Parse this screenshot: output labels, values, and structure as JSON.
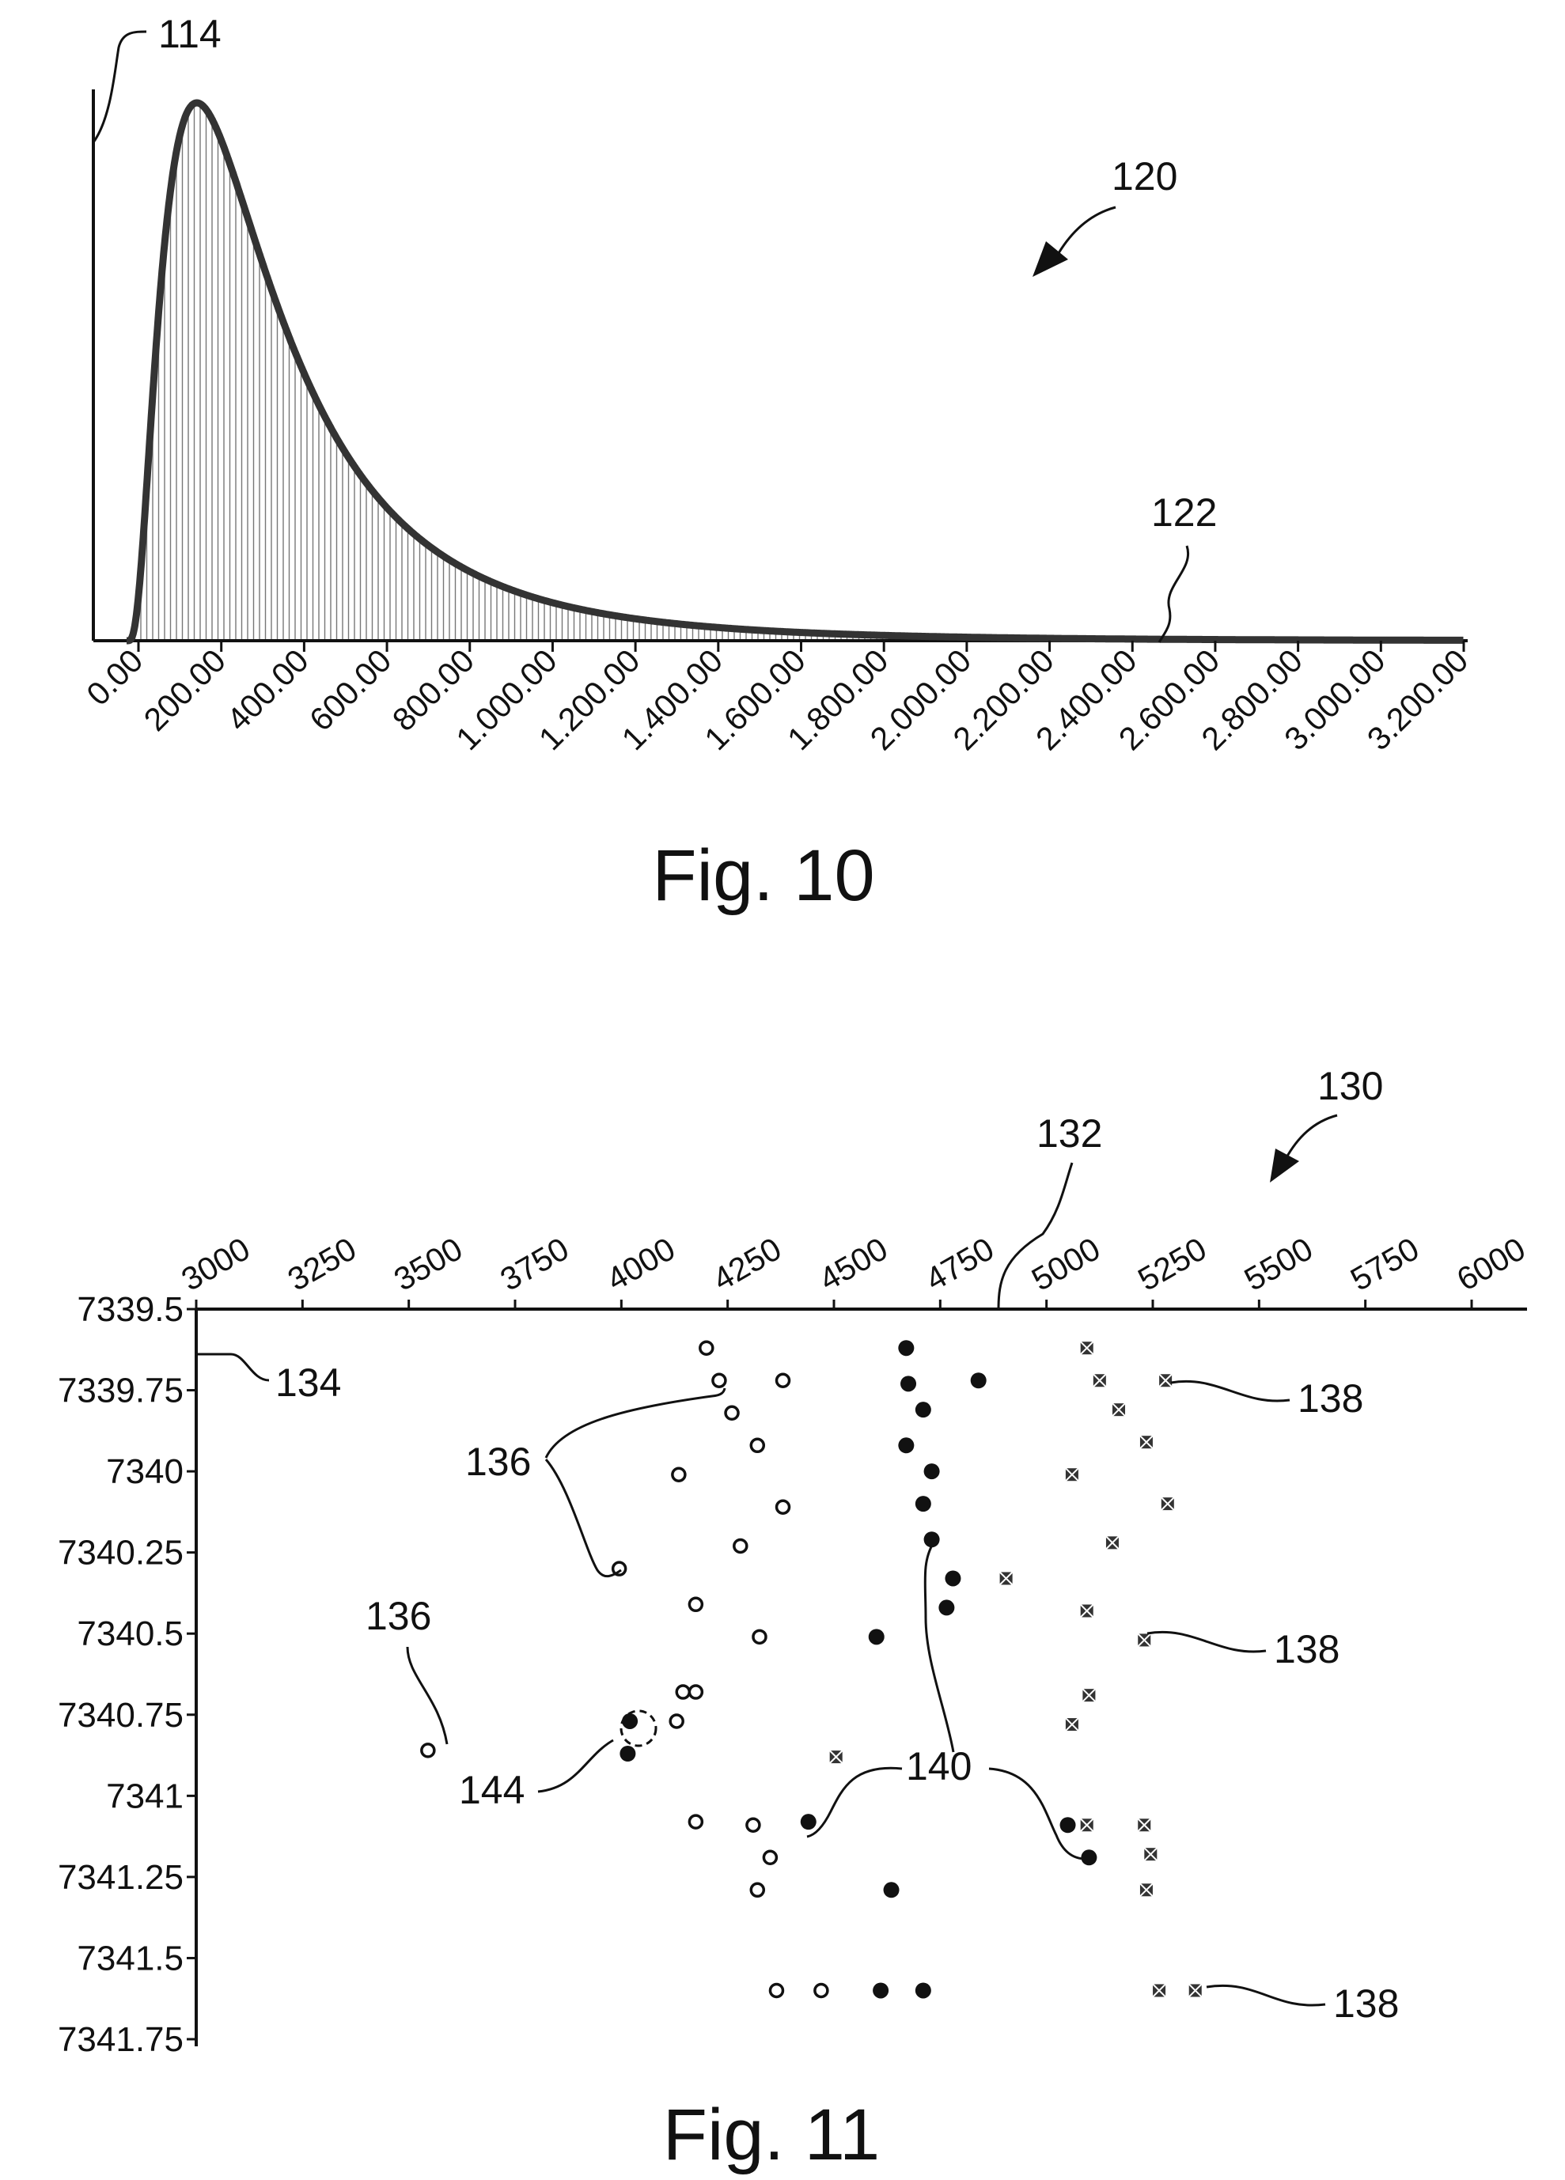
{
  "chart_data": [
    {
      "type": "area",
      "figure_label": "Fig. 10",
      "title": "",
      "xlabel": "",
      "ylabel": "",
      "x_tick_labels": [
        "0.00",
        "200.00",
        "400.00",
        "600.00",
        "800.00",
        "1.000.00",
        "1.200.00",
        "1.400.00",
        "1.600.00",
        "1.800.00",
        "2.000.00",
        "2.200.00",
        "2.400.00",
        "2.600.00",
        "2.800.00",
        "3.000.00",
        "3.200.00"
      ],
      "xlim": [
        0,
        3200
      ],
      "curve_params": {
        "shape": "lognormal",
        "mu": 5.75,
        "sigma": 0.78,
        "start": -30
      },
      "grid": false,
      "reference_numerals": {
        "axis_line": "114",
        "figure": "120",
        "curve": "122"
      }
    },
    {
      "type": "scatter",
      "figure_label": "Fig. 11",
      "title": "",
      "xlabel": "",
      "ylabel": "",
      "x_tick_labels": [
        "3000",
        "3250",
        "3500",
        "3750",
        "4000",
        "4250",
        "4500",
        "4750",
        "5000",
        "5250",
        "5500",
        "5750",
        "6000"
      ],
      "xlim": [
        3000,
        6000
      ],
      "y_tick_labels": [
        "7339.5",
        "7339.75",
        "7340",
        "7340.25",
        "7340.5",
        "7340.75",
        "7341",
        "7341.25",
        "7341.5",
        "7341.75"
      ],
      "ylim": [
        7339.5,
        7341.75
      ],
      "y_inverted": true,
      "series": [
        {
          "marker": "open-circle",
          "points": [
            [
              4200,
              7339.62
            ],
            [
              4230,
              7339.72
            ],
            [
              4380,
              7339.72
            ],
            [
              4260,
              7339.82
            ],
            [
              4320,
              7339.92
            ],
            [
              4135,
              7340.01
            ],
            [
              4380,
              7340.11
            ],
            [
              4280,
              7340.23
            ],
            [
              3995,
              7340.3
            ],
            [
              4175,
              7340.41
            ],
            [
              4325,
              7340.51
            ],
            [
              4145,
              7340.68
            ],
            [
              4175,
              7340.68
            ],
            [
              4130,
              7340.77
            ],
            [
              3545,
              7340.86
            ],
            [
              4175,
              7341.08
            ],
            [
              4310,
              7341.09
            ],
            [
              4350,
              7341.19
            ],
            [
              4320,
              7341.29
            ],
            [
              4365,
              7341.6
            ],
            [
              4470,
              7341.6
            ]
          ]
        },
        {
          "marker": "filled-circle",
          "points": [
            [
              4670,
              7339.62
            ],
            [
              4675,
              7339.73
            ],
            [
              4840,
              7339.72
            ],
            [
              4710,
              7339.81
            ],
            [
              4670,
              7339.92
            ],
            [
              4730,
              7340.0
            ],
            [
              4710,
              7340.1
            ],
            [
              4730,
              7340.21
            ],
            [
              4780,
              7340.33
            ],
            [
              4765,
              7340.42
            ],
            [
              4600,
              7340.51
            ],
            [
              4020,
              7340.77
            ],
            [
              4015,
              7340.87
            ],
            [
              4440,
              7341.08
            ],
            [
              5050,
              7341.09
            ],
            [
              5100,
              7341.19
            ],
            [
              4635,
              7341.29
            ],
            [
              4610,
              7341.6
            ],
            [
              4710,
              7341.6
            ]
          ]
        },
        {
          "marker": "x-mark",
          "points": [
            [
              5095,
              7339.62
            ],
            [
              5125,
              7339.72
            ],
            [
              5280,
              7339.72
            ],
            [
              5170,
              7339.81
            ],
            [
              5235,
              7339.91
            ],
            [
              5060,
              7340.01
            ],
            [
              5285,
              7340.1
            ],
            [
              5155,
              7340.22
            ],
            [
              4905,
              7340.33
            ],
            [
              5095,
              7340.43
            ],
            [
              5230,
              7340.52
            ],
            [
              5100,
              7340.69
            ],
            [
              5060,
              7340.78
            ],
            [
              4505,
              7340.88
            ],
            [
              5095,
              7341.09
            ],
            [
              5230,
              7341.09
            ],
            [
              5245,
              7341.18
            ],
            [
              5235,
              7341.29
            ],
            [
              5265,
              7341.6
            ],
            [
              5350,
              7341.6
            ]
          ]
        }
      ],
      "grid": false,
      "reference_numerals": {
        "figure": "130",
        "x_axis": "132",
        "y_axis": "134",
        "open_circles": "136",
        "x_marks": "138",
        "filled_circles": "140",
        "highlighted_point": "144"
      }
    }
  ]
}
